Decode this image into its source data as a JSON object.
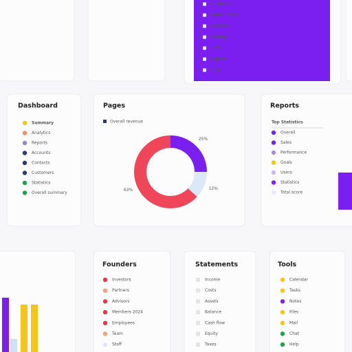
{
  "top_menu": [
    "Dashboard",
    "Profile details",
    "Statistics",
    "Settings",
    "Tools",
    "Reports",
    "Help"
  ],
  "dashboard": {
    "title": "Dashboard",
    "items": [
      {
        "label": "Summary",
        "color": "#f5c518"
      },
      {
        "label": "Analytics",
        "color": "#f28b66"
      },
      {
        "label": "Reports",
        "color": "#8a8fb5"
      },
      {
        "label": "Accounts",
        "color": "#2f3a75"
      },
      {
        "label": "Contacts",
        "color": "#2f3a75"
      },
      {
        "label": "Customers",
        "color": "#2f3a75"
      },
      {
        "label": "Statistics",
        "color": "#1fa34a"
      },
      {
        "label": "Overall summary",
        "color": "#1fa34a"
      }
    ]
  },
  "pages": {
    "title": "Pages",
    "legend": {
      "label": "Overall revenue",
      "color": "#2f3a75"
    },
    "donut": {
      "type": "pie",
      "values": [
        25,
        12,
        63
      ],
      "value_labels": [
        "25%",
        "12%",
        "63%"
      ],
      "colors": [
        "#7b1ff0",
        "#dce8f7",
        "#ef4659"
      ]
    }
  },
  "reports": {
    "title": "Reports",
    "header": "Top Statistics",
    "items": [
      {
        "label": "Overall",
        "color": "#7b1ff0"
      },
      {
        "label": "Sales",
        "color": "#7b1ff0"
      },
      {
        "label": "Performance",
        "color": "#a68cf0"
      },
      {
        "label": "Goals",
        "color": "#f5c518"
      },
      {
        "label": "Users",
        "color": "#c9b8f5"
      },
      {
        "label": "Statistics",
        "color": "#8a1ff0"
      },
      {
        "label": "Total score",
        "color": "#e5e9f5"
      }
    ]
  },
  "bars": {
    "values": [
      79,
      19,
      69,
      69
    ],
    "colors": [
      "#7b1ff0",
      "#cfe2f5",
      "#f5c518",
      "#f5c518"
    ]
  },
  "founders": {
    "title": "Founders",
    "items": [
      {
        "label": "Investors",
        "color": "#e8364f"
      },
      {
        "label": "Partners",
        "color": "#f5a17a"
      },
      {
        "label": "Advisors",
        "color": "#e8364f"
      },
      {
        "label": "Members 2024",
        "color": "#e8364f"
      },
      {
        "label": "Employees",
        "color": "#e8364f"
      },
      {
        "label": "Team",
        "color": "#f5a17a"
      },
      {
        "label": "Staff",
        "color": "#dce8f7"
      }
    ]
  },
  "statements": {
    "title": "Statements",
    "items": [
      {
        "label": "Income",
        "color": "#e3e3e8"
      },
      {
        "label": "Costs",
        "color": "#e3e3e8"
      },
      {
        "label": "Assets",
        "color": "#e3e3e8"
      },
      {
        "label": "Balance",
        "color": "#e3e3e8"
      },
      {
        "label": "Cash flow",
        "color": "#e3e3e8"
      },
      {
        "label": "Equity",
        "color": "#e3e3e8"
      },
      {
        "label": "Taxes",
        "color": "#e3e3e8"
      }
    ]
  },
  "tools": {
    "title": "Tools",
    "items": [
      {
        "label": "Calendar",
        "color": "#f5c518"
      },
      {
        "label": "Tasks",
        "color": "#f5c518"
      },
      {
        "label": "Notes",
        "color": "#7b1ff0"
      },
      {
        "label": "Files",
        "color": "#f5c518"
      },
      {
        "label": "Mail",
        "color": "#f5c518"
      },
      {
        "label": "Chat",
        "color": "#1fa34a"
      },
      {
        "label": "Help",
        "color": "#1fa34a"
      }
    ]
  }
}
